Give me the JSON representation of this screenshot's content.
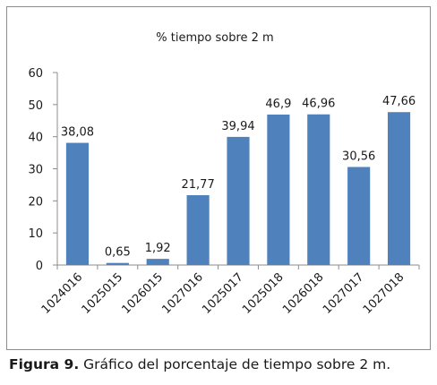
{
  "chart_data": {
    "type": "bar",
    "title": "% tiempo sobre 2 m",
    "xlabel": "",
    "ylabel": "",
    "categories": [
      "1024016",
      "1025015",
      "1026015",
      "1027016",
      "1025017",
      "1025018",
      "1026018",
      "1027017",
      "1027018"
    ],
    "values": [
      38.08,
      0.65,
      1.92,
      21.77,
      39.94,
      46.9,
      46.96,
      30.56,
      47.66
    ],
    "data_labels": [
      "38,08",
      "0,65",
      "1,92",
      "21,77",
      "39,94",
      "46,9",
      "46,96",
      "30,56",
      "47,66"
    ],
    "ylim": [
      0,
      60
    ],
    "yticks": [
      "0",
      "10",
      "20",
      "30",
      "40",
      "50",
      "60"
    ],
    "grid": false,
    "legend": "none",
    "bar_color": "#4f81bd",
    "axis_color": "#8c8c8c"
  },
  "caption": {
    "label": "Figura 9.",
    "text": " Gráfico del porcentaje de tiempo sobre 2 m."
  }
}
